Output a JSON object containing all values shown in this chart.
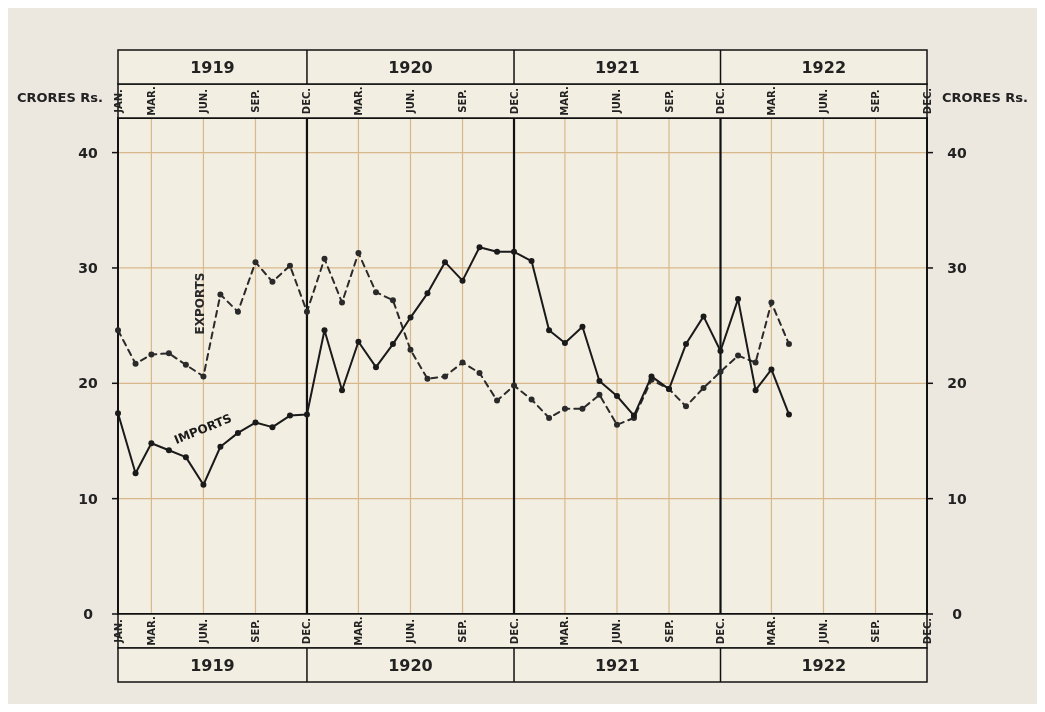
{
  "chart_data": {
    "type": "line",
    "ylabel": "CRORES Rs.",
    "y2label": "CRORES Rs.",
    "x": [
      "1919-01",
      "1919-02",
      "1919-03",
      "1919-04",
      "1919-05",
      "1919-06",
      "1919-07",
      "1919-08",
      "1919-09",
      "1919-10",
      "1919-11",
      "1919-12",
      "1920-01",
      "1920-02",
      "1920-03",
      "1920-04",
      "1920-05",
      "1920-06",
      "1920-07",
      "1920-08",
      "1920-09",
      "1920-10",
      "1920-11",
      "1920-12",
      "1921-01",
      "1921-02",
      "1921-03",
      "1921-04",
      "1921-05",
      "1921-06",
      "1921-07",
      "1921-08",
      "1921-09",
      "1921-10",
      "1921-11",
      "1921-12",
      "1922-01",
      "1922-02",
      "1922-03",
      "1922-04"
    ],
    "series": [
      {
        "name": "EXPORTS",
        "color": "#2a2a2a",
        "line_style": "dashed",
        "marker": "circle",
        "values": [
          24.6,
          21.7,
          22.5,
          22.6,
          21.6,
          20.6,
          27.7,
          26.2,
          30.5,
          28.8,
          30.2,
          26.2,
          30.8,
          27.0,
          31.3,
          27.9,
          27.2,
          22.9,
          20.4,
          20.6,
          21.8,
          20.9,
          18.5,
          19.8,
          18.6,
          17.0,
          17.8,
          17.8,
          19.0,
          16.4,
          17.0,
          20.3,
          19.5,
          18.0,
          19.6,
          21.0,
          22.4,
          21.8,
          27.0,
          23.4
        ]
      },
      {
        "name": "IMPORTS",
        "color": "#1a1a1a",
        "line_style": "solid",
        "marker": "circle",
        "values": [
          17.4,
          12.2,
          14.8,
          14.2,
          13.6,
          11.2,
          14.5,
          15.7,
          16.6,
          16.2,
          17.2,
          17.3,
          24.6,
          19.4,
          23.6,
          21.4,
          23.4,
          25.7,
          27.8,
          30.5,
          28.9,
          31.8,
          31.4,
          31.4,
          30.6,
          24.6,
          23.5,
          24.9,
          20.2,
          18.9,
          17.2,
          20.6,
          19.5,
          23.4,
          25.8,
          22.8,
          27.3,
          19.4,
          21.2,
          17.3
        ]
      }
    ],
    "xlim": [
      "1919-01",
      "1922-12"
    ],
    "xticks": [
      {
        "value": "1919-01",
        "label": "JAN."
      },
      {
        "value": "1919-03",
        "label": "MAR."
      },
      {
        "value": "1919-06",
        "label": "JUN."
      },
      {
        "value": "1919-09",
        "label": "SEP."
      },
      {
        "value": "1919-12",
        "label": "DEC."
      },
      {
        "value": "1920-03",
        "label": "MAR."
      },
      {
        "value": "1920-06",
        "label": "JUN."
      },
      {
        "value": "1920-09",
        "label": "SEP."
      },
      {
        "value": "1920-12",
        "label": "DEC."
      },
      {
        "value": "1921-03",
        "label": "MAR."
      },
      {
        "value": "1921-06",
        "label": "JUN."
      },
      {
        "value": "1921-09",
        "label": "SEP."
      },
      {
        "value": "1921-12",
        "label": "DEC."
      },
      {
        "value": "1922-03",
        "label": "MAR."
      },
      {
        "value": "1922-06",
        "label": "JUN."
      },
      {
        "value": "1922-09",
        "label": "SEP."
      },
      {
        "value": "1922-12",
        "label": "DEC."
      }
    ],
    "x2ticks": [
      {
        "value": "1919-01",
        "label": "JAN."
      },
      {
        "value": "1919-03",
        "label": "MAR."
      },
      {
        "value": "1919-06",
        "label": "JUN."
      },
      {
        "value": "1919-09",
        "label": "SEP."
      },
      {
        "value": "1919-12",
        "label": "DEC."
      },
      {
        "value": "1920-03",
        "label": "MAR."
      },
      {
        "value": "1920-06",
        "label": "JUN."
      },
      {
        "value": "1920-09",
        "label": "SEP."
      },
      {
        "value": "1920-12",
        "label": "DEC."
      },
      {
        "value": "1921-03",
        "label": "MAR."
      },
      {
        "value": "1921-06",
        "label": "JUN."
      },
      {
        "value": "1921-09",
        "label": "SEP."
      },
      {
        "value": "1921-12",
        "label": "DEC."
      },
      {
        "value": "1922-03",
        "label": "MAR."
      },
      {
        "value": "1922-06",
        "label": "JUN."
      },
      {
        "value": "1922-09",
        "label": "SEP."
      },
      {
        "value": "1922-12",
        "label": "DEC."
      }
    ],
    "ylim": [
      0,
      43
    ],
    "yticks": [
      0,
      10,
      20,
      30,
      40
    ],
    "y2lim": [
      0,
      43
    ],
    "y2ticks": [
      0,
      10,
      20,
      30,
      40
    ],
    "annotations": [
      "1919",
      "1920",
      "1921",
      "1922"
    ],
    "x2lim": [
      "1919-01",
      "1922-12"
    ],
    "grid": true,
    "legend": false
  }
}
